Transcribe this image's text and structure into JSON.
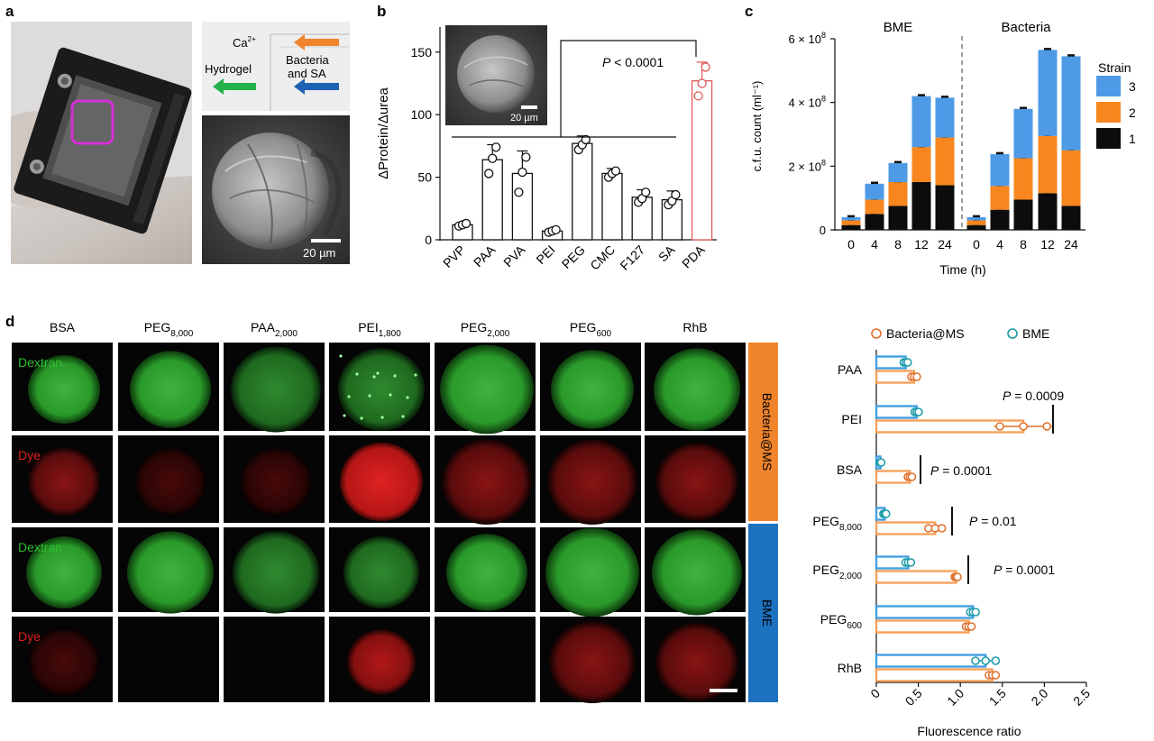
{
  "panels": {
    "a": {
      "letter": "a",
      "arrow_ca": "Ca",
      "arrow_ca_sup": "2+",
      "label_hydrogel": "Hydrogel",
      "label_bacteria_line1": "Bacteria",
      "label_bacteria_line2": "and SA",
      "scalebar": "20 µm",
      "colors": {
        "frame": "#d52fd6",
        "orange": "#f0842c",
        "green": "#23b24a",
        "blue": "#1d63b3"
      }
    },
    "b": {
      "letter": "b",
      "inset_scalebar": "20 µm",
      "p_value": "P < 0.0001"
    },
    "c": {
      "letter": "c",
      "group_left": "BME",
      "group_right": "Bacteria",
      "legend_title": "Strain"
    },
    "d": {
      "letter": "d",
      "columns": [
        {
          "main": "BSA",
          "sub": ""
        },
        {
          "main": "PEG",
          "sub": "8,000"
        },
        {
          "main": "PAA",
          "sub": "2,000"
        },
        {
          "main": "PEI",
          "sub": "1,800"
        },
        {
          "main": "PEG",
          "sub": "2,000"
        },
        {
          "main": "PEG",
          "sub": "600"
        },
        {
          "main": "RhB",
          "sub": ""
        }
      ],
      "row_labels": [
        "Dextran",
        "Dye",
        "Dextran",
        "Dye"
      ],
      "side_labels": [
        "Bacteria@MS",
        "BME"
      ],
      "side_colors": [
        "#f0842c",
        "#1d72c0"
      ]
    }
  },
  "chart_data": [
    {
      "id": "b",
      "type": "bar",
      "categories": [
        "PVP",
        "PAA",
        "PVA",
        "PEI",
        "PEG",
        "CMC",
        "F127",
        "SA",
        "PDA"
      ],
      "values": [
        12,
        64,
        53,
        7,
        77,
        53,
        34,
        32,
        127
      ],
      "errors": [
        2,
        12,
        18,
        2,
        6,
        4,
        6,
        7,
        15
      ],
      "points": [
        [
          11,
          12,
          13
        ],
        [
          53,
          65,
          74
        ],
        [
          38,
          54,
          66
        ],
        [
          6,
          7,
          8
        ],
        [
          72,
          76,
          80
        ],
        [
          50,
          53,
          55
        ],
        [
          30,
          33,
          38
        ],
        [
          28,
          31,
          36
        ],
        [
          115,
          125,
          138
        ]
      ],
      "ylabel": "ΔProtein/Δurea",
      "ylim": [
        0,
        170
      ],
      "yticks": [
        0,
        50,
        100,
        150
      ],
      "colors": {
        "default": "#111111",
        "highlight": "#e05a5a"
      }
    },
    {
      "id": "c",
      "type": "bar",
      "stacked": true,
      "groups": [
        "BME",
        "Bacteria"
      ],
      "categories": [
        "0",
        "4",
        "8",
        "12",
        "24",
        "0",
        "4",
        "8",
        "12",
        "24"
      ],
      "xlabel": "Time (h)",
      "ylabel": "c.f.u. count (ml⁻¹)",
      "ylim": [
        0,
        600000000.0
      ],
      "yticks": [
        {
          "v": 0,
          "base": "0",
          "exp": ""
        },
        {
          "v": 200000000.0,
          "base": "2 × 10",
          "exp": "8"
        },
        {
          "v": 400000000.0,
          "base": "4 × 10",
          "exp": "8"
        },
        {
          "v": 600000000.0,
          "base": "6 × 10",
          "exp": "8"
        }
      ],
      "series": [
        {
          "name": "1",
          "color": "#0c0c0c",
          "values": [
            15000000.0,
            50000000.0,
            75000000.0,
            150000000.0,
            140000000.0,
            15000000.0,
            63000000.0,
            95000000.0,
            115000000.0,
            75000000.0
          ]
        },
        {
          "name": "2",
          "color": "#f7861e",
          "values": [
            15000000.0,
            45000000.0,
            75000000.0,
            110000000.0,
            150000000.0,
            15000000.0,
            75000000.0,
            130000000.0,
            180000000.0,
            175000000.0
          ]
        },
        {
          "name": "3",
          "color": "#4e9ae6",
          "values": [
            10000000.0,
            50000000.0,
            60000000.0,
            160000000.0,
            125000000.0,
            10000000.0,
            100000000.0,
            155000000.0,
            270000000.0,
            295000000.0
          ]
        }
      ],
      "legend_position": "right"
    },
    {
      "id": "d-right",
      "type": "bar",
      "orientation": "horizontal",
      "categories": [
        {
          "main": "PAA",
          "sub": ""
        },
        {
          "main": "PEI",
          "sub": ""
        },
        {
          "main": "BSA",
          "sub": ""
        },
        {
          "main": "PEG",
          "sub": "8,000"
        },
        {
          "main": "PEG",
          "sub": "2,000"
        },
        {
          "main": "PEG",
          "sub": "600"
        },
        {
          "main": "RhB",
          "sub": ""
        }
      ],
      "series": [
        {
          "name": "BME",
          "color": "#43a0e0",
          "marker_color": "#1b9aa8",
          "values": [
            0.35,
            0.48,
            0.05,
            0.1,
            0.38,
            1.15,
            1.3
          ],
          "errors": [
            0.03,
            0.03,
            0.01,
            0.02,
            0.04,
            0.04,
            0.15
          ]
        },
        {
          "name": "Bacteria@MS",
          "color": "#f5a25d",
          "marker_color": "#e0702c",
          "values": [
            0.45,
            1.75,
            0.4,
            0.7,
            0.95,
            1.1,
            1.38
          ],
          "errors": [
            0.04,
            0.35,
            0.03,
            0.1,
            0.02,
            0.04,
            0.05
          ]
        }
      ],
      "xlabel": "Fluorescence ratio",
      "xlim": [
        0,
        2.5
      ],
      "xticks": [
        "0",
        "0.5",
        "1.0",
        "1.5",
        "2.0",
        "2.5"
      ],
      "legend": [
        "Bacteria@MS",
        "BME"
      ],
      "annotations": [
        {
          "text": "P = 0.0009",
          "row": 1
        },
        {
          "text": "P = 0.0001",
          "row": 2
        },
        {
          "text": "P = 0.01",
          "row": 3
        },
        {
          "text": "P = 0.0001",
          "row": 4
        }
      ]
    }
  ]
}
